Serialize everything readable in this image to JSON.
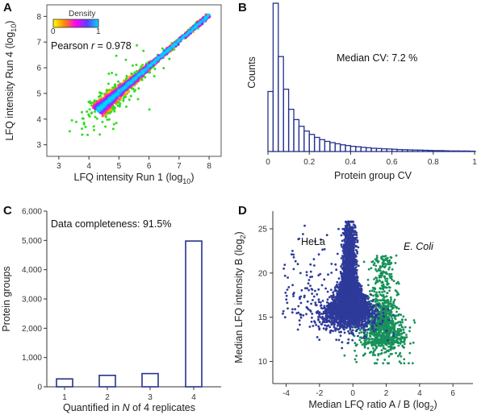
{
  "figure": {
    "panels": [
      {
        "letter": "A",
        "type": "scatter",
        "xlabel": "LFQ intensity Run 1 (log",
        "xlabel_sub": "10",
        "xlabel_end": ")",
        "ylabel": "LFQ intensity Run 4 (log",
        "ylabel_sub": "10",
        "ylabel_end": ")",
        "annotation": "Pearson r = 0.978",
        "annotation_prefix": "Pearson ",
        "annotation_r": "r",
        "annotation_suffix": " = 0.978",
        "legend_title": "Density",
        "legend_min": "0",
        "legend_max": "1",
        "xticks": [
          3,
          4,
          5,
          6,
          7,
          8
        ],
        "yticks": [
          3,
          4,
          5,
          6,
          7,
          8
        ],
        "xlim": [
          2.6,
          8.4
        ],
        "ylim": [
          2.55,
          8.45
        ]
      },
      {
        "letter": "B",
        "type": "histogram",
        "xlabel": "Protein group CV",
        "ylabel": "Counts",
        "annotation": "Median CV: 7.2 %",
        "xticks": [
          0,
          0.2,
          0.4,
          0.6,
          0.8,
          1
        ],
        "xtick_labels": [
          "0",
          "0.2",
          "0.4",
          "0.6",
          "0.8",
          "1"
        ],
        "bin_width": 0.025,
        "bin_start": 0,
        "counts": [
          405,
          1000,
          640,
          420,
          285,
          215,
          170,
          138,
          115,
          95,
          80,
          68,
          60,
          52,
          45,
          40,
          35,
          32,
          28,
          25,
          22,
          20,
          18,
          17,
          15,
          13,
          12,
          11,
          10,
          9,
          8,
          7,
          6,
          6,
          5,
          4,
          4,
          3,
          3,
          2
        ]
      },
      {
        "letter": "C",
        "type": "bar",
        "xlabel_prefix": "Quantified in ",
        "xlabel_italic": "N",
        "xlabel_suffix": " of 4 replicates",
        "ylabel": "Protein groups",
        "annotation": "Data completeness: 91.5%",
        "categories": [
          "1",
          "2",
          "3",
          "4"
        ],
        "values": [
          270,
          390,
          450,
          4980
        ],
        "ylim": [
          0,
          6000
        ],
        "yticks": [
          0,
          1000,
          2000,
          3000,
          4000,
          5000,
          6000
        ],
        "ytick_labels": [
          "0",
          "1,000",
          "2,000",
          "3,000",
          "4,000",
          "5,000",
          "6,000"
        ]
      },
      {
        "letter": "D",
        "type": "scatter",
        "xlabel": "Median LFQ ratio A / B (log",
        "xlabel_sub": "2",
        "xlabel_end": ")",
        "ylabel": "Median LFQ intensity B (log",
        "ylabel_sub": "2",
        "ylabel_end": ")",
        "xticks": [
          -4,
          -2,
          0,
          2,
          4,
          6
        ],
        "yticks": [
          10,
          15,
          20,
          25
        ],
        "xlim": [
          -4.8,
          7.2
        ],
        "ylim": [
          7.5,
          27
        ],
        "series": [
          {
            "name": "HeLa",
            "color": "#2e3a9a",
            "center_x": -0.2,
            "center_y": 16.5
          },
          {
            "name": "E. Coli",
            "color": "#17925a",
            "center_x": 1.8,
            "center_y": 15.5
          }
        ]
      }
    ]
  },
  "chart_data": [
    {
      "type": "scatter",
      "title": "",
      "xlabel": "LFQ intensity Run 1 (log10)",
      "ylabel": "LFQ intensity Run 4 (log10)",
      "xlim": [
        2.6,
        8.4
      ],
      "ylim": [
        2.55,
        8.45
      ],
      "series": [
        {
          "trend": {
            "x": [
              3.4,
              8.0
            ],
            "y": [
              3.5,
              7.9
            ]
          },
          "point_count_approx": 2600
        }
      ]
    },
    {
      "type": "bar",
      "xlabel": "Protein group CV",
      "ylabel": "Counts",
      "x_range": [
        0,
        1
      ],
      "bin_width": 0.025,
      "values": [
        405,
        1000,
        640,
        420,
        285,
        215,
        170,
        138,
        115,
        95,
        80,
        68,
        60,
        52,
        45,
        40,
        35,
        32,
        28,
        25,
        22,
        20,
        18,
        17,
        15,
        13,
        12,
        11,
        10,
        9,
        8,
        7,
        6,
        6,
        5,
        4,
        4,
        3,
        3,
        2
      ]
    },
    {
      "type": "bar",
      "xlabel": "Quantified in N of 4 replicates",
      "ylabel": "Protein groups",
      "categories": [
        "1",
        "2",
        "3",
        "4"
      ],
      "values": [
        270,
        390,
        450,
        4980
      ],
      "ylim": [
        0,
        6000
      ]
    },
    {
      "type": "scatter",
      "xlabel": "Median LFQ ratio A / B (log2)",
      "ylabel": "Median LFQ intensity B (log2)",
      "xlim": [
        -4.8,
        7.2
      ],
      "ylim": [
        7.5,
        27
      ],
      "series": [
        {
          "name": "HeLa",
          "center": [
            -0.2,
            16.5
          ],
          "point_count_approx": 4500
        },
        {
          "name": "E. Coli",
          "center": [
            1.8,
            15.5
          ],
          "point_count_approx": 1100
        }
      ]
    }
  ]
}
